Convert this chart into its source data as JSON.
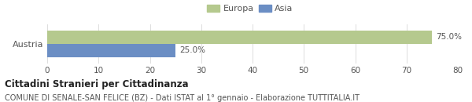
{
  "categories": [
    "Austria"
  ],
  "series": [
    {
      "label": "Europa",
      "values": [
        75.0
      ],
      "color": "#b5c98e"
    },
    {
      "label": "Asia",
      "values": [
        25.0
      ],
      "color": "#6b8ec4"
    }
  ],
  "xlim": [
    0,
    80
  ],
  "xticks": [
    0,
    10,
    20,
    30,
    40,
    50,
    60,
    70,
    80
  ],
  "bar_height": 0.32,
  "title": "Cittadini Stranieri per Cittadinanza",
  "subtitle": "COMUNE DI SENALE-SAN FELICE (BZ) - Dati ISTAT al 1° gennaio - Elaborazione TUTTITALIA.IT",
  "title_fontsize": 8.5,
  "subtitle_fontsize": 7.0,
  "legend_fontsize": 8.0,
  "tick_fontsize": 7.5,
  "label_fontsize": 7.5,
  "ylabel_fontsize": 8.0,
  "background_color": "#ffffff",
  "bar_edge_color": "none",
  "grid_color": "#dddddd"
}
